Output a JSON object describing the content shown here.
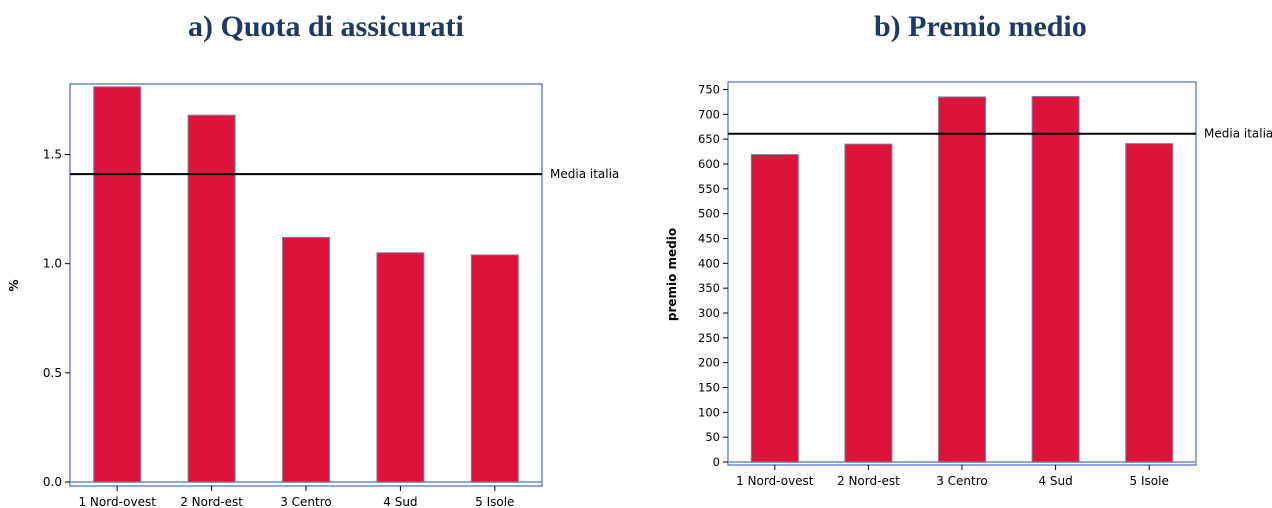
{
  "colors": {
    "bar_fill": "#dc143c",
    "bar_stroke": "#7f7f9f",
    "frame": "#2b4ab8",
    "title": "#1f3864",
    "reference_line": "#000000",
    "baseline": "#8fa7c8"
  },
  "panels": [
    {
      "title": "a)  Quota di assicurati"
    },
    {
      "title": "b)  Premio medio"
    }
  ],
  "chart_data": [
    {
      "type": "bar",
      "title": "a)  Quota di assicurati",
      "categories": [
        "1 Nord-ovest",
        "2 Nord-est",
        "3 Centro",
        "4 Sud",
        "5 Isole"
      ],
      "values": [
        1.81,
        1.68,
        1.12,
        1.05,
        1.04
      ],
      "xlabel": "",
      "ylabel": "%",
      "ylim": [
        0,
        1.8
      ],
      "yticks": [
        0.0,
        0.5,
        1.0,
        1.5
      ],
      "ytick_labels": [
        "0.0",
        "0.5",
        "1.0",
        "1.5"
      ],
      "reference_line": {
        "label": "Media italia",
        "value": 1.41
      },
      "grid": false
    },
    {
      "type": "bar",
      "title": "b)  Premio medio",
      "categories": [
        "1 Nord-ovest",
        "2 Nord-est",
        "3 Centro",
        "4 Sud",
        "5 Isole"
      ],
      "values": [
        619,
        640,
        735,
        736,
        641
      ],
      "xlabel": "",
      "ylabel": "premio medio",
      "ylim": [
        0,
        755
      ],
      "yticks": [
        0,
        50,
        100,
        150,
        200,
        250,
        300,
        350,
        400,
        450,
        500,
        550,
        600,
        650,
        700,
        750
      ],
      "ytick_labels": [
        "0",
        "50",
        "100",
        "150",
        "200",
        "250",
        "300",
        "350",
        "400",
        "450",
        "500",
        "550",
        "600",
        "650",
        "700",
        "750"
      ],
      "reference_line": {
        "label": "Media italia",
        "value": 661
      },
      "grid": false
    }
  ]
}
